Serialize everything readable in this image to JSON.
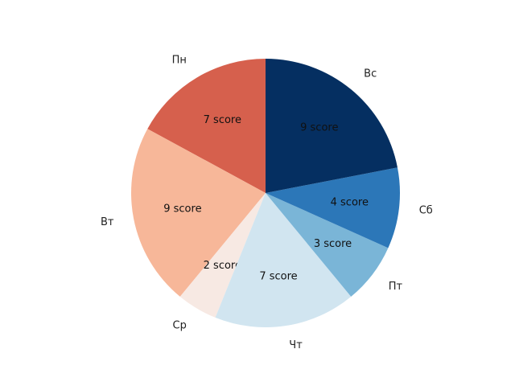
{
  "chart_data": {
    "type": "pie",
    "categories": [
      "Пн",
      "Вт",
      "Ср",
      "Чт",
      "Пт",
      "Сб",
      "Вс"
    ],
    "values": [
      7,
      9,
      2,
      7,
      3,
      4,
      9
    ],
    "value_labels": [
      "7 score",
      "9 score",
      "2 score",
      "7 score",
      "3 score",
      "4 score",
      "9 score"
    ],
    "colors": [
      "#d6604d",
      "#f4a582",
      "#fddbc7",
      "#d1e5f0",
      "#92c5de",
      "#4393c3",
      "#2166ac"
    ],
    "title": "",
    "start_angle_degrees": 90,
    "direction": "counterclockwise"
  }
}
